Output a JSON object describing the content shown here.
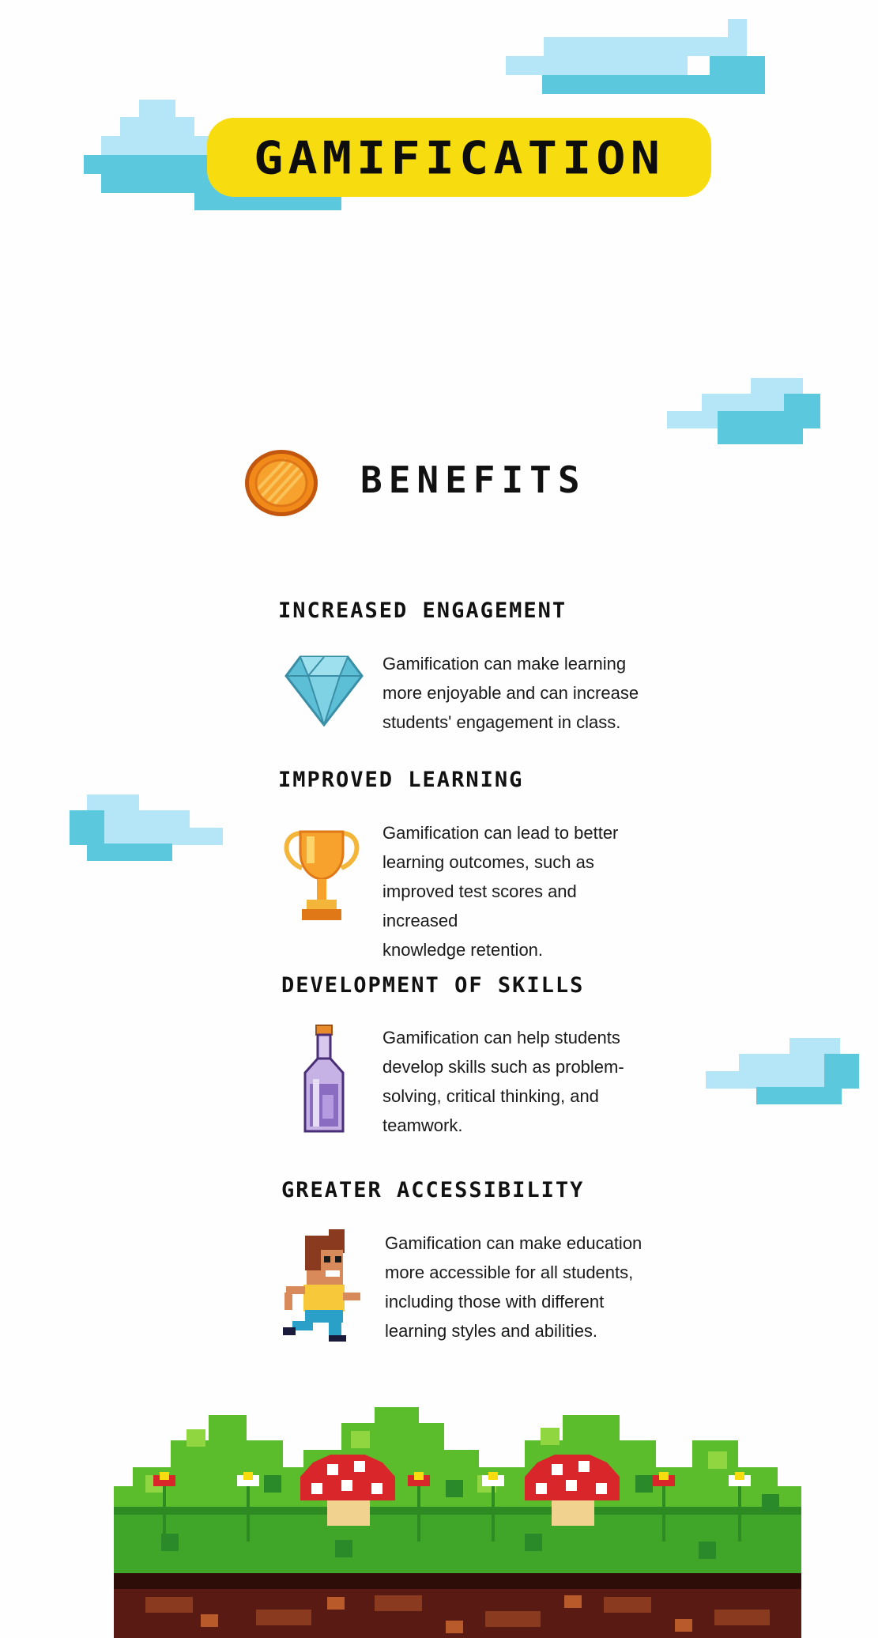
{
  "header": {
    "title": "GAMIFICATION"
  },
  "benefits": {
    "title": "BENEFITS",
    "items": [
      {
        "heading": "INCREASED ENGAGEMENT",
        "lines": [
          "Gamification can make learning",
          "more enjoyable and can increase",
          "students' engagement in class."
        ],
        "icon": "diamond-icon"
      },
      {
        "heading": "IMPROVED LEARNING",
        "lines": [
          "Gamification can lead to better",
          "learning outcomes, such as",
          "improved test scores and increased",
          "knowledge retention."
        ],
        "icon": "trophy-icon"
      },
      {
        "heading": "DEVELOPMENT OF SKILLS",
        "lines": [
          "Gamification can help students",
          "develop skills such as problem-",
          "solving, critical thinking, and",
          "teamwork."
        ],
        "icon": "potion-bottle-icon"
      },
      {
        "heading": "GREATER ACCESSIBILITY",
        "lines": [
          "Gamification can make education",
          "more accessible for all students,",
          "including those with different",
          "learning styles and abilities."
        ],
        "icon": "running-boy-icon"
      }
    ]
  },
  "colors": {
    "accent_yellow": "#f7dd10",
    "cloud_light": "#b4e6f8",
    "cloud_dark": "#5cc8de",
    "grass": "#4aad2c",
    "soil": "#5a1a14",
    "mushroom_red": "#d8262a"
  }
}
